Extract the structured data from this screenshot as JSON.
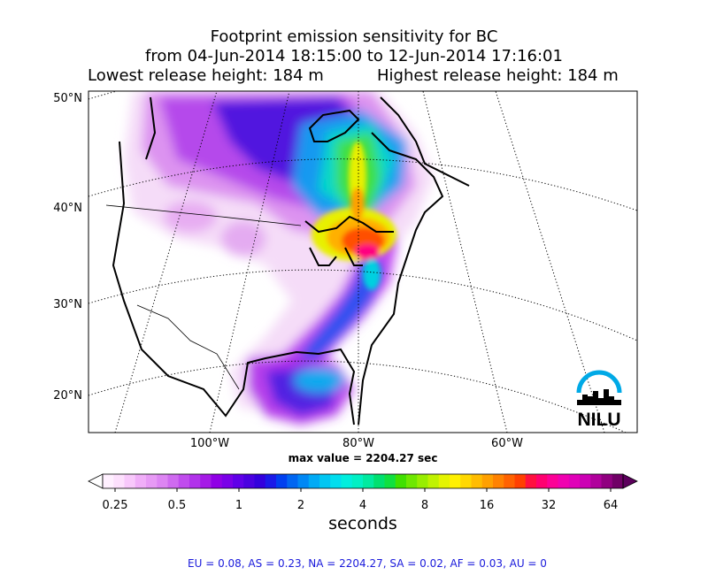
{
  "title": {
    "line1": "Footprint emission sensitivity for BC",
    "line2": "from 04-Jun-2014 18:15:00 to 12-Jun-2014 17:16:01",
    "lowest": "Lowest release height: 184 m",
    "highest": "Highest release height: 184 m"
  },
  "chart_data": {
    "type": "heatmap",
    "projection": "lambert conformal (North America)",
    "lat_ticks": [
      "50°N",
      "40°N",
      "30°N",
      "20°N"
    ],
    "lon_ticks": [
      "100°W",
      "80°W",
      "60°W"
    ],
    "max_value_label": "max value = 2204.27 sec",
    "colorbar": {
      "ticks": [
        "0.25",
        "0.5",
        "1",
        "2",
        "4",
        "8",
        "16",
        "32",
        "64"
      ],
      "label": "seconds",
      "scale": "log",
      "extend": "both",
      "colors": [
        "#fff0ff",
        "#fde0fd",
        "#f8c8fb",
        "#f0aef8",
        "#e79af5",
        "#dd85f3",
        "#cf6af0",
        "#c04ced",
        "#b132ea",
        "#a51ae6",
        "#9000e6",
        "#7a00e8",
        "#6000e8",
        "#4a00e0",
        "#3300dd",
        "#1a1ae8",
        "#0040f0",
        "#0066f2",
        "#0088f5",
        "#00aaf5",
        "#00c6f2",
        "#00ddee",
        "#00eedd",
        "#00f0c4",
        "#00eaa0",
        "#00e070",
        "#10e040",
        "#40e000",
        "#6ee800",
        "#98ee00",
        "#c0f200",
        "#e4f400",
        "#fff000",
        "#ffd800",
        "#ffbc00",
        "#ffa000",
        "#ff8200",
        "#ff6200",
        "#ff4000",
        "#ff1040",
        "#ff0070",
        "#fc0096",
        "#f000b0",
        "#e000b8",
        "#cc00b4",
        "#b0009c",
        "#900080",
        "#700066"
      ],
      "under_color": "#ffffff",
      "over_color": "#5c005c"
    }
  },
  "stats": "EU = 0.08,  AS = 0.23,  NA = 2204.27,  SA = 0.02,  AF = 0.03,  AU = 0",
  "logo": {
    "text": "NILU",
    "color": "#00a9e6"
  }
}
